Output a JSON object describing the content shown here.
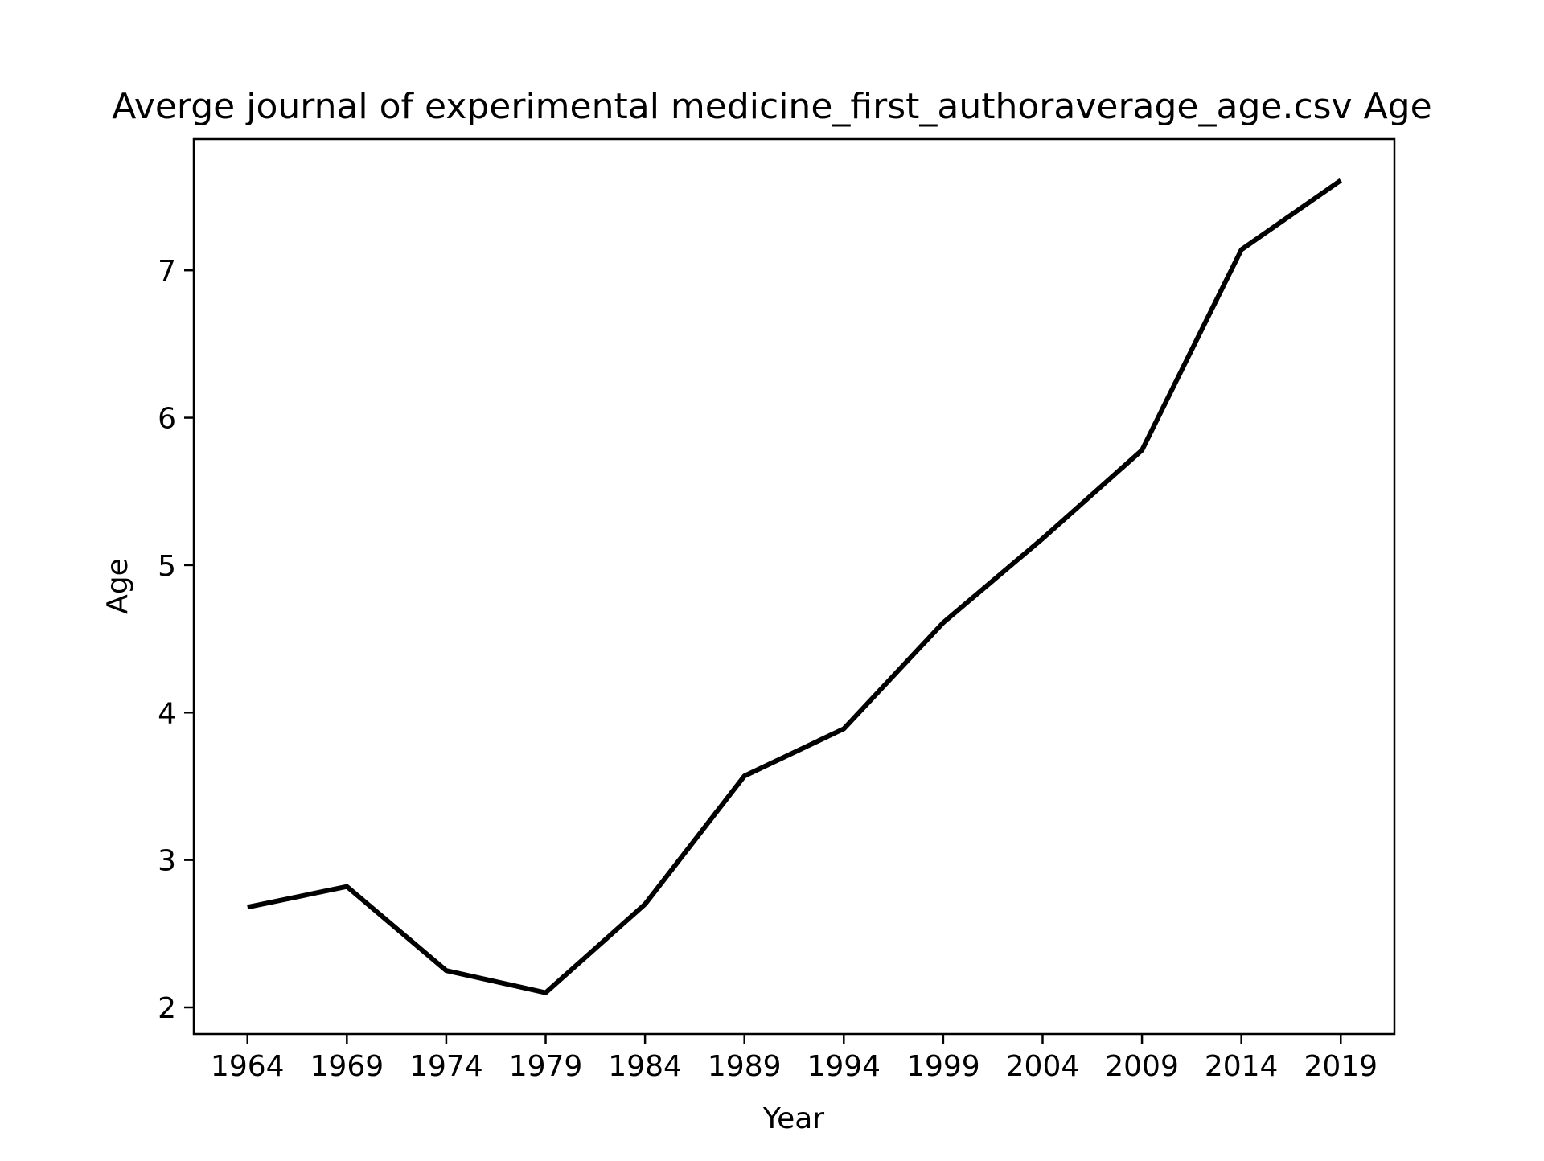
{
  "chart_data": {
    "type": "line",
    "title": "Averge journal of experimental medicine_first_authoraverage_age.csv Age",
    "xlabel": "Year",
    "ylabel": "Age",
    "x": [
      1964,
      1969,
      1974,
      1979,
      1984,
      1989,
      1994,
      1999,
      2004,
      2009,
      2014,
      2019
    ],
    "series": [
      {
        "values": [
          2.68,
          2.82,
          2.25,
          2.1,
          2.7,
          3.57,
          3.89,
          4.61,
          5.18,
          5.78,
          7.14,
          7.61
        ]
      }
    ],
    "xlim": [
      1961.3,
      2021.7
    ],
    "ylim": [
      1.82,
      7.89
    ],
    "xticks": [
      "1964",
      "1969",
      "1974",
      "1979",
      "1984",
      "1989",
      "1994",
      "1999",
      "2004",
      "2009",
      "2014",
      "2019"
    ],
    "yticks": [
      "2",
      "3",
      "4",
      "5",
      "6",
      "7"
    ],
    "grid": false,
    "line_color": "#000000"
  }
}
